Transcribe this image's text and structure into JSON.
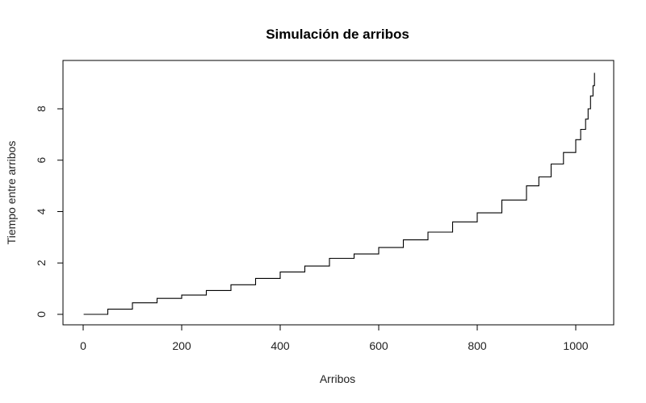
{
  "chart_data": {
    "type": "line",
    "title": "Simulación de arribos",
    "xlabel": "Arribos",
    "ylabel": "Tiempo entre arribos",
    "xlim": [
      0,
      1040
    ],
    "ylim": [
      0,
      9.4
    ],
    "x_ticks": [
      0,
      200,
      400,
      600,
      800,
      1000
    ],
    "y_ticks": [
      0,
      2,
      4,
      6,
      8
    ],
    "grid": false,
    "legend": "none",
    "series": [
      {
        "points": [
          [
            1,
            0.0
          ],
          [
            50,
            0.2
          ],
          [
            100,
            0.45
          ],
          [
            150,
            0.62
          ],
          [
            200,
            0.75
          ],
          [
            250,
            0.93
          ],
          [
            300,
            1.15
          ],
          [
            350,
            1.4
          ],
          [
            400,
            1.65
          ],
          [
            450,
            1.88
          ],
          [
            500,
            2.18
          ],
          [
            550,
            2.35
          ],
          [
            600,
            2.6
          ],
          [
            650,
            2.9
          ],
          [
            700,
            3.2
          ],
          [
            750,
            3.6
          ],
          [
            800,
            3.95
          ],
          [
            850,
            4.45
          ],
          [
            900,
            5.0
          ],
          [
            925,
            5.35
          ],
          [
            950,
            5.85
          ],
          [
            975,
            6.3
          ],
          [
            1000,
            6.8
          ],
          [
            1010,
            7.2
          ],
          [
            1020,
            7.6
          ],
          [
            1025,
            8.0
          ],
          [
            1030,
            8.5
          ],
          [
            1035,
            8.9
          ],
          [
            1038,
            9.4
          ]
        ]
      }
    ]
  }
}
